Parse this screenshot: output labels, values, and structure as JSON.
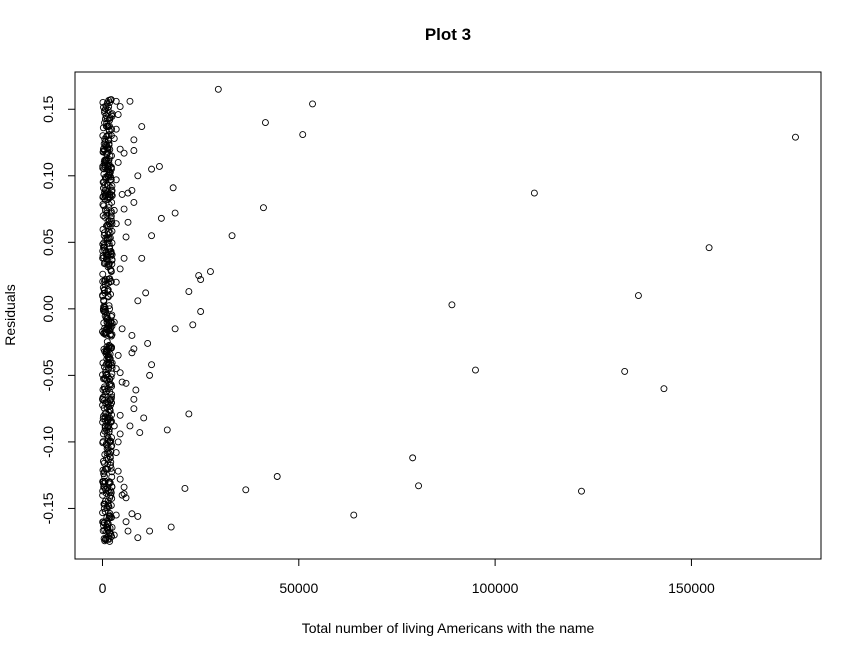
{
  "chart_data": {
    "type": "scatter",
    "title": "Plot 3",
    "xlabel": "Total number of living Americans with the name",
    "ylabel": "Residuals",
    "xlim": [
      -7000,
      183000
    ],
    "ylim": [
      -0.188,
      0.178
    ],
    "xticks": [
      0,
      50000,
      100000,
      150000
    ],
    "xtick_labels": [
      "0",
      "50000",
      "100000",
      "150000"
    ],
    "yticks": [
      -0.15,
      -0.1,
      -0.05,
      0.0,
      0.05,
      0.1,
      0.15
    ],
    "ytick_labels": [
      "-0.15",
      "-0.10",
      "-0.05",
      "0.00",
      "0.05",
      "0.10",
      "0.15"
    ],
    "grid": false,
    "marker": "open-circle",
    "dense_band": {
      "x_min": 0,
      "x_max": 2500,
      "y_min": -0.175,
      "y_max": 0.158
    },
    "points": [
      [
        29500,
        0.165
      ],
      [
        41500,
        0.14
      ],
      [
        51000,
        0.131
      ],
      [
        53500,
        0.154
      ],
      [
        176500,
        0.129
      ],
      [
        110000,
        0.087
      ],
      [
        41000,
        0.076
      ],
      [
        33000,
        0.055
      ],
      [
        154500,
        0.046
      ],
      [
        136500,
        0.01
      ],
      [
        89000,
        0.003
      ],
      [
        95000,
        -0.046
      ],
      [
        133000,
        -0.047
      ],
      [
        143000,
        -0.06
      ],
      [
        79000,
        -0.112
      ],
      [
        80500,
        -0.133
      ],
      [
        122000,
        -0.137
      ],
      [
        64000,
        -0.155
      ],
      [
        44500,
        -0.126
      ],
      [
        36500,
        -0.136
      ],
      [
        21000,
        -0.135
      ],
      [
        17500,
        -0.164
      ],
      [
        14500,
        0.107
      ],
      [
        12500,
        0.105
      ],
      [
        18000,
        0.091
      ],
      [
        18500,
        0.072
      ],
      [
        15000,
        0.068
      ],
      [
        12500,
        0.055
      ],
      [
        27500,
        0.028
      ],
      [
        24500,
        0.025
      ],
      [
        25000,
        0.022
      ],
      [
        22000,
        0.013
      ],
      [
        11000,
        0.012
      ],
      [
        9000,
        0.006
      ],
      [
        25000,
        -0.002
      ],
      [
        23000,
        -0.012
      ],
      [
        18500,
        -0.015
      ],
      [
        11500,
        -0.026
      ],
      [
        12500,
        -0.042
      ],
      [
        12000,
        -0.05
      ],
      [
        22000,
        -0.079
      ],
      [
        16500,
        -0.091
      ],
      [
        10500,
        -0.082
      ],
      [
        9500,
        -0.093
      ],
      [
        12000,
        -0.167
      ],
      [
        9000,
        -0.172
      ],
      [
        10000,
        0.137
      ],
      [
        8000,
        0.127
      ],
      [
        7000,
        0.156
      ],
      [
        8000,
        0.119
      ],
      [
        9000,
        0.1
      ],
      [
        7500,
        0.089
      ],
      [
        6500,
        0.087
      ],
      [
        8000,
        0.08
      ],
      [
        6500,
        0.065
      ],
      [
        10000,
        0.038
      ],
      [
        7500,
        -0.02
      ],
      [
        8000,
        -0.03
      ],
      [
        7500,
        -0.033
      ],
      [
        8500,
        -0.061
      ],
      [
        8000,
        -0.068
      ],
      [
        8000,
        -0.075
      ],
      [
        7000,
        -0.088
      ],
      [
        7500,
        -0.154
      ],
      [
        9000,
        -0.156
      ],
      [
        6000,
        -0.16
      ],
      [
        6500,
        -0.167
      ],
      [
        6000,
        -0.142
      ],
      [
        5500,
        -0.134
      ],
      [
        5500,
        -0.139
      ],
      [
        4500,
        -0.128
      ],
      [
        5000,
        -0.14
      ],
      [
        4000,
        -0.122
      ],
      [
        4500,
        -0.094
      ],
      [
        4000,
        -0.1
      ],
      [
        4500,
        -0.08
      ],
      [
        5000,
        -0.055
      ],
      [
        6000,
        -0.056
      ],
      [
        4500,
        0.152
      ],
      [
        4000,
        0.146
      ],
      [
        4500,
        0.12
      ],
      [
        5500,
        0.117
      ],
      [
        4000,
        0.11
      ],
      [
        5000,
        0.086
      ],
      [
        5500,
        0.075
      ],
      [
        6000,
        0.054
      ],
      [
        5500,
        0.038
      ],
      [
        4500,
        0.03
      ],
      [
        5000,
        -0.015
      ],
      [
        4000,
        -0.035
      ],
      [
        4500,
        -0.048
      ],
      [
        3500,
        0.156
      ],
      [
        3500,
        0.135
      ],
      [
        3500,
        0.097
      ],
      [
        3500,
        0.064
      ],
      [
        3500,
        0.02
      ],
      [
        3500,
        -0.045
      ],
      [
        3500,
        -0.108
      ],
      [
        3500,
        -0.155
      ],
      [
        3000,
        0.128
      ],
      [
        3000,
        0.074
      ],
      [
        3000,
        -0.01
      ],
      [
        3000,
        -0.088
      ],
      [
        3000,
        -0.17
      ]
    ]
  }
}
